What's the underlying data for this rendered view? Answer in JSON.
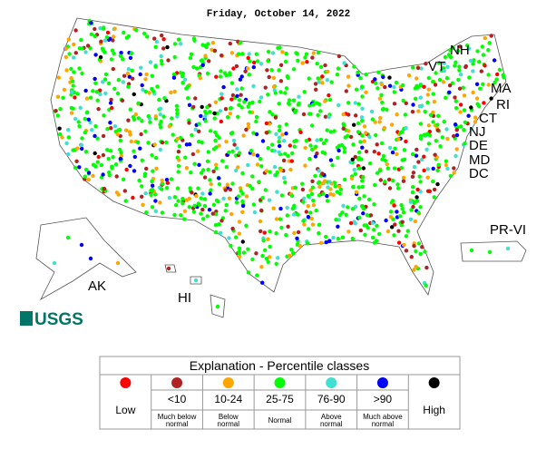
{
  "title": "Friday, October 14, 2022",
  "map_labels": [
    "NH",
    "VT",
    "MA",
    "RI",
    "CT",
    "NJ",
    "DE",
    "MD",
    "DC",
    "PR-VI",
    "AK",
    "HI"
  ],
  "logo": "USGS",
  "legend": {
    "title": "Explanation - Percentile classes",
    "classes": [
      {
        "color": "#ff0000",
        "label": "Low"
      },
      {
        "color": "#b22222",
        "label": "<10",
        "description": "Much below normal"
      },
      {
        "color": "#ffa500",
        "label": "10-24",
        "description": "Below normal"
      },
      {
        "color": "#00ff00",
        "label": "25-75",
        "description": "Normal"
      },
      {
        "color": "#40e0d0",
        "label": "76-90",
        "description": "Above normal"
      },
      {
        "color": "#0000ff",
        "label": ">90",
        "description": "Much above normal"
      },
      {
        "color": "#000000",
        "label": "High"
      }
    ]
  }
}
